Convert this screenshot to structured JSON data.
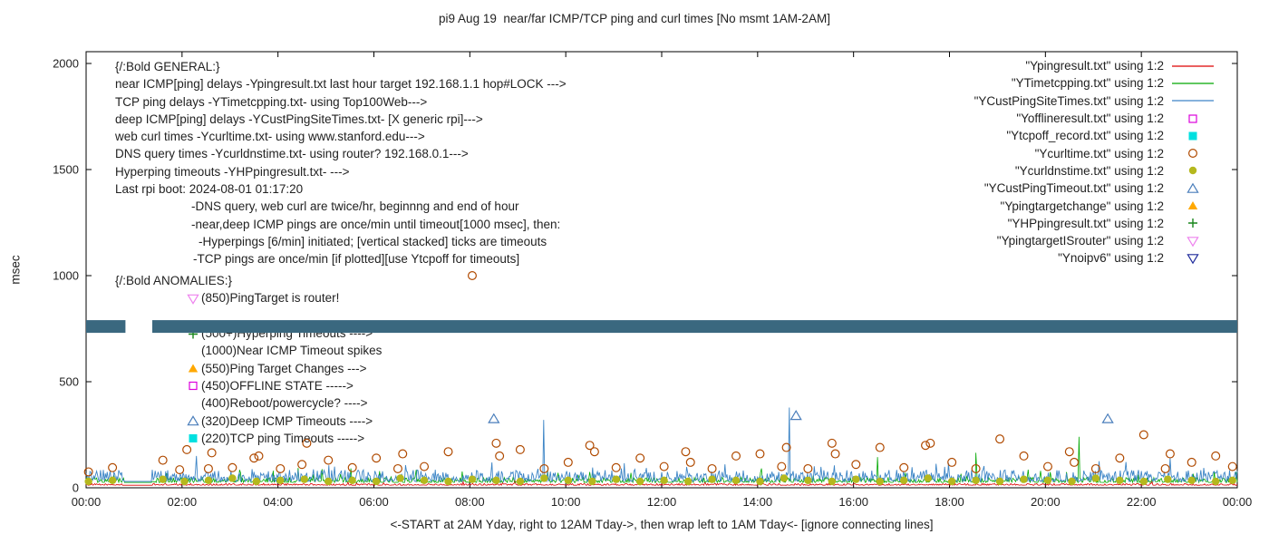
{
  "chart_data": {
    "type": "line",
    "title": "pi9 Aug 19  near/far ICMP/TCP ping and curl times [No msmt 1AM-2AM]",
    "xlabel": "<-START at 2AM Yday, right to 12AM Tday->, then wrap left to 1AM Tday<- [ignore connecting lines]",
    "ylabel": "msec",
    "ylim": [
      0,
      2000
    ],
    "x_range_hours": [
      0,
      24
    ],
    "y_ticks": [
      "0",
      "500",
      "1000",
      "1500",
      "2000"
    ],
    "x_ticks": [
      "00:00",
      "02:00",
      "04:00",
      "06:00",
      "08:00",
      "10:00",
      "12:00",
      "14:00",
      "16:00",
      "18:00",
      "20:00",
      "22:00",
      "00:00"
    ],
    "line_series": [
      {
        "name": "Ypingresult.txt",
        "color": "#dd0000",
        "baseline_msec": 12,
        "noise_msec": 8,
        "burst_chance": 0.02,
        "burst_extra": 20,
        "spikes": []
      },
      {
        "name": "YTimetcpping.txt",
        "color": "#00a800",
        "baseline_msec": 25,
        "noise_msec": 25,
        "burst_chance": 0.05,
        "burst_extra": 50,
        "spikes": [
          [
            16.5,
            145
          ],
          [
            18.55,
            165
          ],
          [
            20.7,
            240
          ]
        ]
      },
      {
        "name": "YCustPingSiteTimes.txt",
        "color": "#3d85c6",
        "baseline_msec": 30,
        "noise_msec": 55,
        "burst_chance": 0.06,
        "burst_extra": 60,
        "spikes": [
          [
            2.3,
            150
          ],
          [
            9.54,
            320
          ],
          [
            14.66,
            378
          ],
          [
            22.6,
            140
          ]
        ]
      }
    ],
    "scatter_series": [
      {
        "name": "Ycurltime.txt",
        "marker": "circle-open",
        "color": "#b04a00",
        "points": [
          [
            0.05,
            75
          ],
          [
            0.55,
            95
          ],
          [
            1.6,
            130
          ],
          [
            1.95,
            85
          ],
          [
            2.1,
            180
          ],
          [
            2.55,
            90
          ],
          [
            2.62,
            165
          ],
          [
            3.05,
            95
          ],
          [
            3.5,
            140
          ],
          [
            3.6,
            150
          ],
          [
            4.05,
            90
          ],
          [
            4.5,
            110
          ],
          [
            4.6,
            210
          ],
          [
            5.05,
            130
          ],
          [
            5.55,
            95
          ],
          [
            6.05,
            140
          ],
          [
            6.5,
            90
          ],
          [
            6.6,
            160
          ],
          [
            7.05,
            100
          ],
          [
            7.55,
            170
          ],
          [
            8.05,
            1000
          ],
          [
            8.55,
            210
          ],
          [
            8.62,
            150
          ],
          [
            9.05,
            180
          ],
          [
            9.55,
            90
          ],
          [
            10.05,
            120
          ],
          [
            10.5,
            200
          ],
          [
            10.6,
            170
          ],
          [
            11.05,
            95
          ],
          [
            11.55,
            140
          ],
          [
            12.05,
            100
          ],
          [
            12.5,
            170
          ],
          [
            12.6,
            120
          ],
          [
            13.05,
            90
          ],
          [
            13.55,
            150
          ],
          [
            14.05,
            160
          ],
          [
            14.5,
            100
          ],
          [
            14.6,
            190
          ],
          [
            15.05,
            90
          ],
          [
            15.55,
            210
          ],
          [
            15.62,
            160
          ],
          [
            16.05,
            110
          ],
          [
            16.55,
            190
          ],
          [
            17.05,
            95
          ],
          [
            17.5,
            200
          ],
          [
            17.6,
            210
          ],
          [
            18.05,
            120
          ],
          [
            18.55,
            90
          ],
          [
            19.05,
            230
          ],
          [
            19.55,
            150
          ],
          [
            20.05,
            100
          ],
          [
            20.5,
            170
          ],
          [
            20.6,
            120
          ],
          [
            21.05,
            90
          ],
          [
            21.55,
            140
          ],
          [
            22.05,
            250
          ],
          [
            22.5,
            90
          ],
          [
            22.6,
            160
          ],
          [
            23.05,
            120
          ],
          [
            23.55,
            150
          ],
          [
            23.9,
            100
          ]
        ]
      },
      {
        "name": "Ycurldnstime.txt",
        "marker": "circle-filled",
        "color": "#b5b81e",
        "points": [
          [
            0.05,
            30
          ],
          [
            0.55,
            35
          ],
          [
            1.6,
            40
          ],
          [
            2.05,
            30
          ],
          [
            2.55,
            35
          ],
          [
            3.05,
            45
          ],
          [
            3.55,
            30
          ],
          [
            4.05,
            35
          ],
          [
            4.55,
            40
          ],
          [
            5.05,
            30
          ],
          [
            5.55,
            35
          ],
          [
            6.05,
            30
          ],
          [
            6.55,
            45
          ],
          [
            7.05,
            35
          ],
          [
            7.55,
            30
          ],
          [
            8.05,
            40
          ],
          [
            8.55,
            35
          ],
          [
            9.05,
            30
          ],
          [
            9.55,
            45
          ],
          [
            10.05,
            35
          ],
          [
            10.55,
            30
          ],
          [
            11.05,
            40
          ],
          [
            11.55,
            30
          ],
          [
            12.05,
            35
          ],
          [
            12.55,
            30
          ],
          [
            13.05,
            40
          ],
          [
            13.55,
            35
          ],
          [
            14.05,
            30
          ],
          [
            14.55,
            45
          ],
          [
            15.05,
            35
          ],
          [
            15.55,
            30
          ],
          [
            16.05,
            40
          ],
          [
            16.55,
            30
          ],
          [
            17.05,
            35
          ],
          [
            17.55,
            45
          ],
          [
            18.05,
            30
          ],
          [
            18.55,
            35
          ],
          [
            19.05,
            30
          ],
          [
            19.55,
            40
          ],
          [
            20.05,
            35
          ],
          [
            20.55,
            30
          ],
          [
            21.05,
            45
          ],
          [
            21.55,
            35
          ],
          [
            22.05,
            30
          ],
          [
            22.55,
            40
          ],
          [
            23.05,
            35
          ],
          [
            23.55,
            30
          ],
          [
            23.9,
            35
          ]
        ]
      },
      {
        "name": "YCustPingTimeout.txt",
        "marker": "triangle-open",
        "color": "#4a7ebb",
        "points": [
          [
            8.5,
            325
          ],
          [
            14.8,
            340
          ],
          [
            21.3,
            325
          ]
        ]
      }
    ],
    "noipv6_band": {
      "y_msec": 760,
      "half_msec": 30,
      "segments_hours": [
        [
          0,
          0.82
        ],
        [
          1.38,
          24
        ]
      ],
      "color": "#3a687f"
    }
  },
  "legend": [
    {
      "label": "\"Ypingresult.txt\" using 1:2",
      "marker": "line",
      "color": "#dd0000"
    },
    {
      "label": "\"YTimetcpping.txt\" using 1:2",
      "marker": "line",
      "color": "#00a800"
    },
    {
      "label": "\"YCustPingSiteTimes.txt\" using 1:2",
      "marker": "line",
      "color": "#3d85c6"
    },
    {
      "label": "\"Yofflineresult.txt\" using 1:2",
      "marker": "square-open",
      "color": "#dd00dd"
    },
    {
      "label": "\"Ytcpoff_record.txt\" using 1:2",
      "marker": "square-filled",
      "color": "#00e0e0"
    },
    {
      "label": "\"Ycurltime.txt\" using 1:2",
      "marker": "circle-open",
      "color": "#b04a00"
    },
    {
      "label": "\"Ycurldnstime.txt\" using 1:2",
      "marker": "circle-filled",
      "color": "#b5b81e"
    },
    {
      "label": "\"YCustPingTimeout.txt\" using 1:2",
      "marker": "triangle-open",
      "color": "#4a7ebb"
    },
    {
      "label": "\"Ypingtargetchange\" using 1:2",
      "marker": "triangle-filled",
      "color": "#ffa800"
    },
    {
      "label": "\"YHPpingresult.txt\" using 1:2",
      "marker": "plus",
      "color": "#18861b"
    },
    {
      "label": "\"YpingtargetISrouter\" using 1:2",
      "marker": "tri-down-open",
      "color": "#ee82ee"
    },
    {
      "label": "\"Ynoipv6\" using 1:2",
      "marker": "tri-down-open",
      "color": "#202c9c"
    }
  ],
  "annotations": {
    "general": [
      {
        "indent": 0,
        "text": "{/:Bold GENERAL:}"
      },
      {
        "indent": 0,
        "text": "near ICMP[ping] delays -Ypingresult.txt last hour target 192.168.1.1 hop#LOCK --->"
      },
      {
        "indent": 0,
        "text": "TCP ping delays -YTimetcpping.txt- using Top100Web--->"
      },
      {
        "indent": 0,
        "text": "deep ICMP[ping] delays -YCustPingSiteTimes.txt- [X generic rpi]--->"
      },
      {
        "indent": 0,
        "text": "web curl times -Ycurltime.txt- using www.stanford.edu--->"
      },
      {
        "indent": 0,
        "text": "DNS query times -Ycurldnstime.txt- using router? 192.168.0.1--->"
      },
      {
        "indent": 0,
        "text": "Hyperping timeouts -YHPpingresult.txt- --->"
      },
      {
        "indent": 0,
        "text": "Last rpi boot: 2024-08-01 01:17:20"
      },
      {
        "indent": 84,
        "text": "-DNS query, web curl are twice/hr, beginnng and end of hour"
      },
      {
        "indent": 84,
        "text": "-near,deep ICMP pings are once/min until timeout[1000 msec], then:"
      },
      {
        "indent": 92,
        "text": "-Hyperpings [6/min] initiated; [vertical stacked] ticks are timeouts"
      },
      {
        "indent": 86,
        "text": "-TCP pings are once/min [if plotted][use Ytcpoff for timeouts]"
      }
    ],
    "anomalies_header": "{/:Bold ANOMALIES:}",
    "anomalies": [
      {
        "marker": "tri-down-open",
        "color": "#ee82ee",
        "gap_before": false,
        "text": "(850)PingTarget is router!"
      },
      {
        "marker": "plus",
        "color": "#18861b",
        "gap_before": true,
        "text": "(500+)Hyperping Timeouts ---->"
      },
      {
        "marker": null,
        "color": null,
        "gap_before": false,
        "text": "(1000)Near ICMP Timeout spikes"
      },
      {
        "marker": "triangle-filled",
        "color": "#ffa800",
        "gap_before": false,
        "text": "(550)Ping Target Changes --->"
      },
      {
        "marker": "square-open",
        "color": "#dd00dd",
        "gap_before": false,
        "text": "(450)OFFLINE STATE ----->"
      },
      {
        "marker": null,
        "color": null,
        "gap_before": false,
        "text": "(400)Reboot/powercycle? ---->"
      },
      {
        "marker": "triangle-open",
        "color": "#4a7ebb",
        "gap_before": false,
        "text": "(320)Deep ICMP Timeouts ---->"
      },
      {
        "marker": "square-filled",
        "color": "#00e0e0",
        "gap_before": false,
        "text": "(220)TCP ping Timeouts ----->"
      }
    ]
  }
}
